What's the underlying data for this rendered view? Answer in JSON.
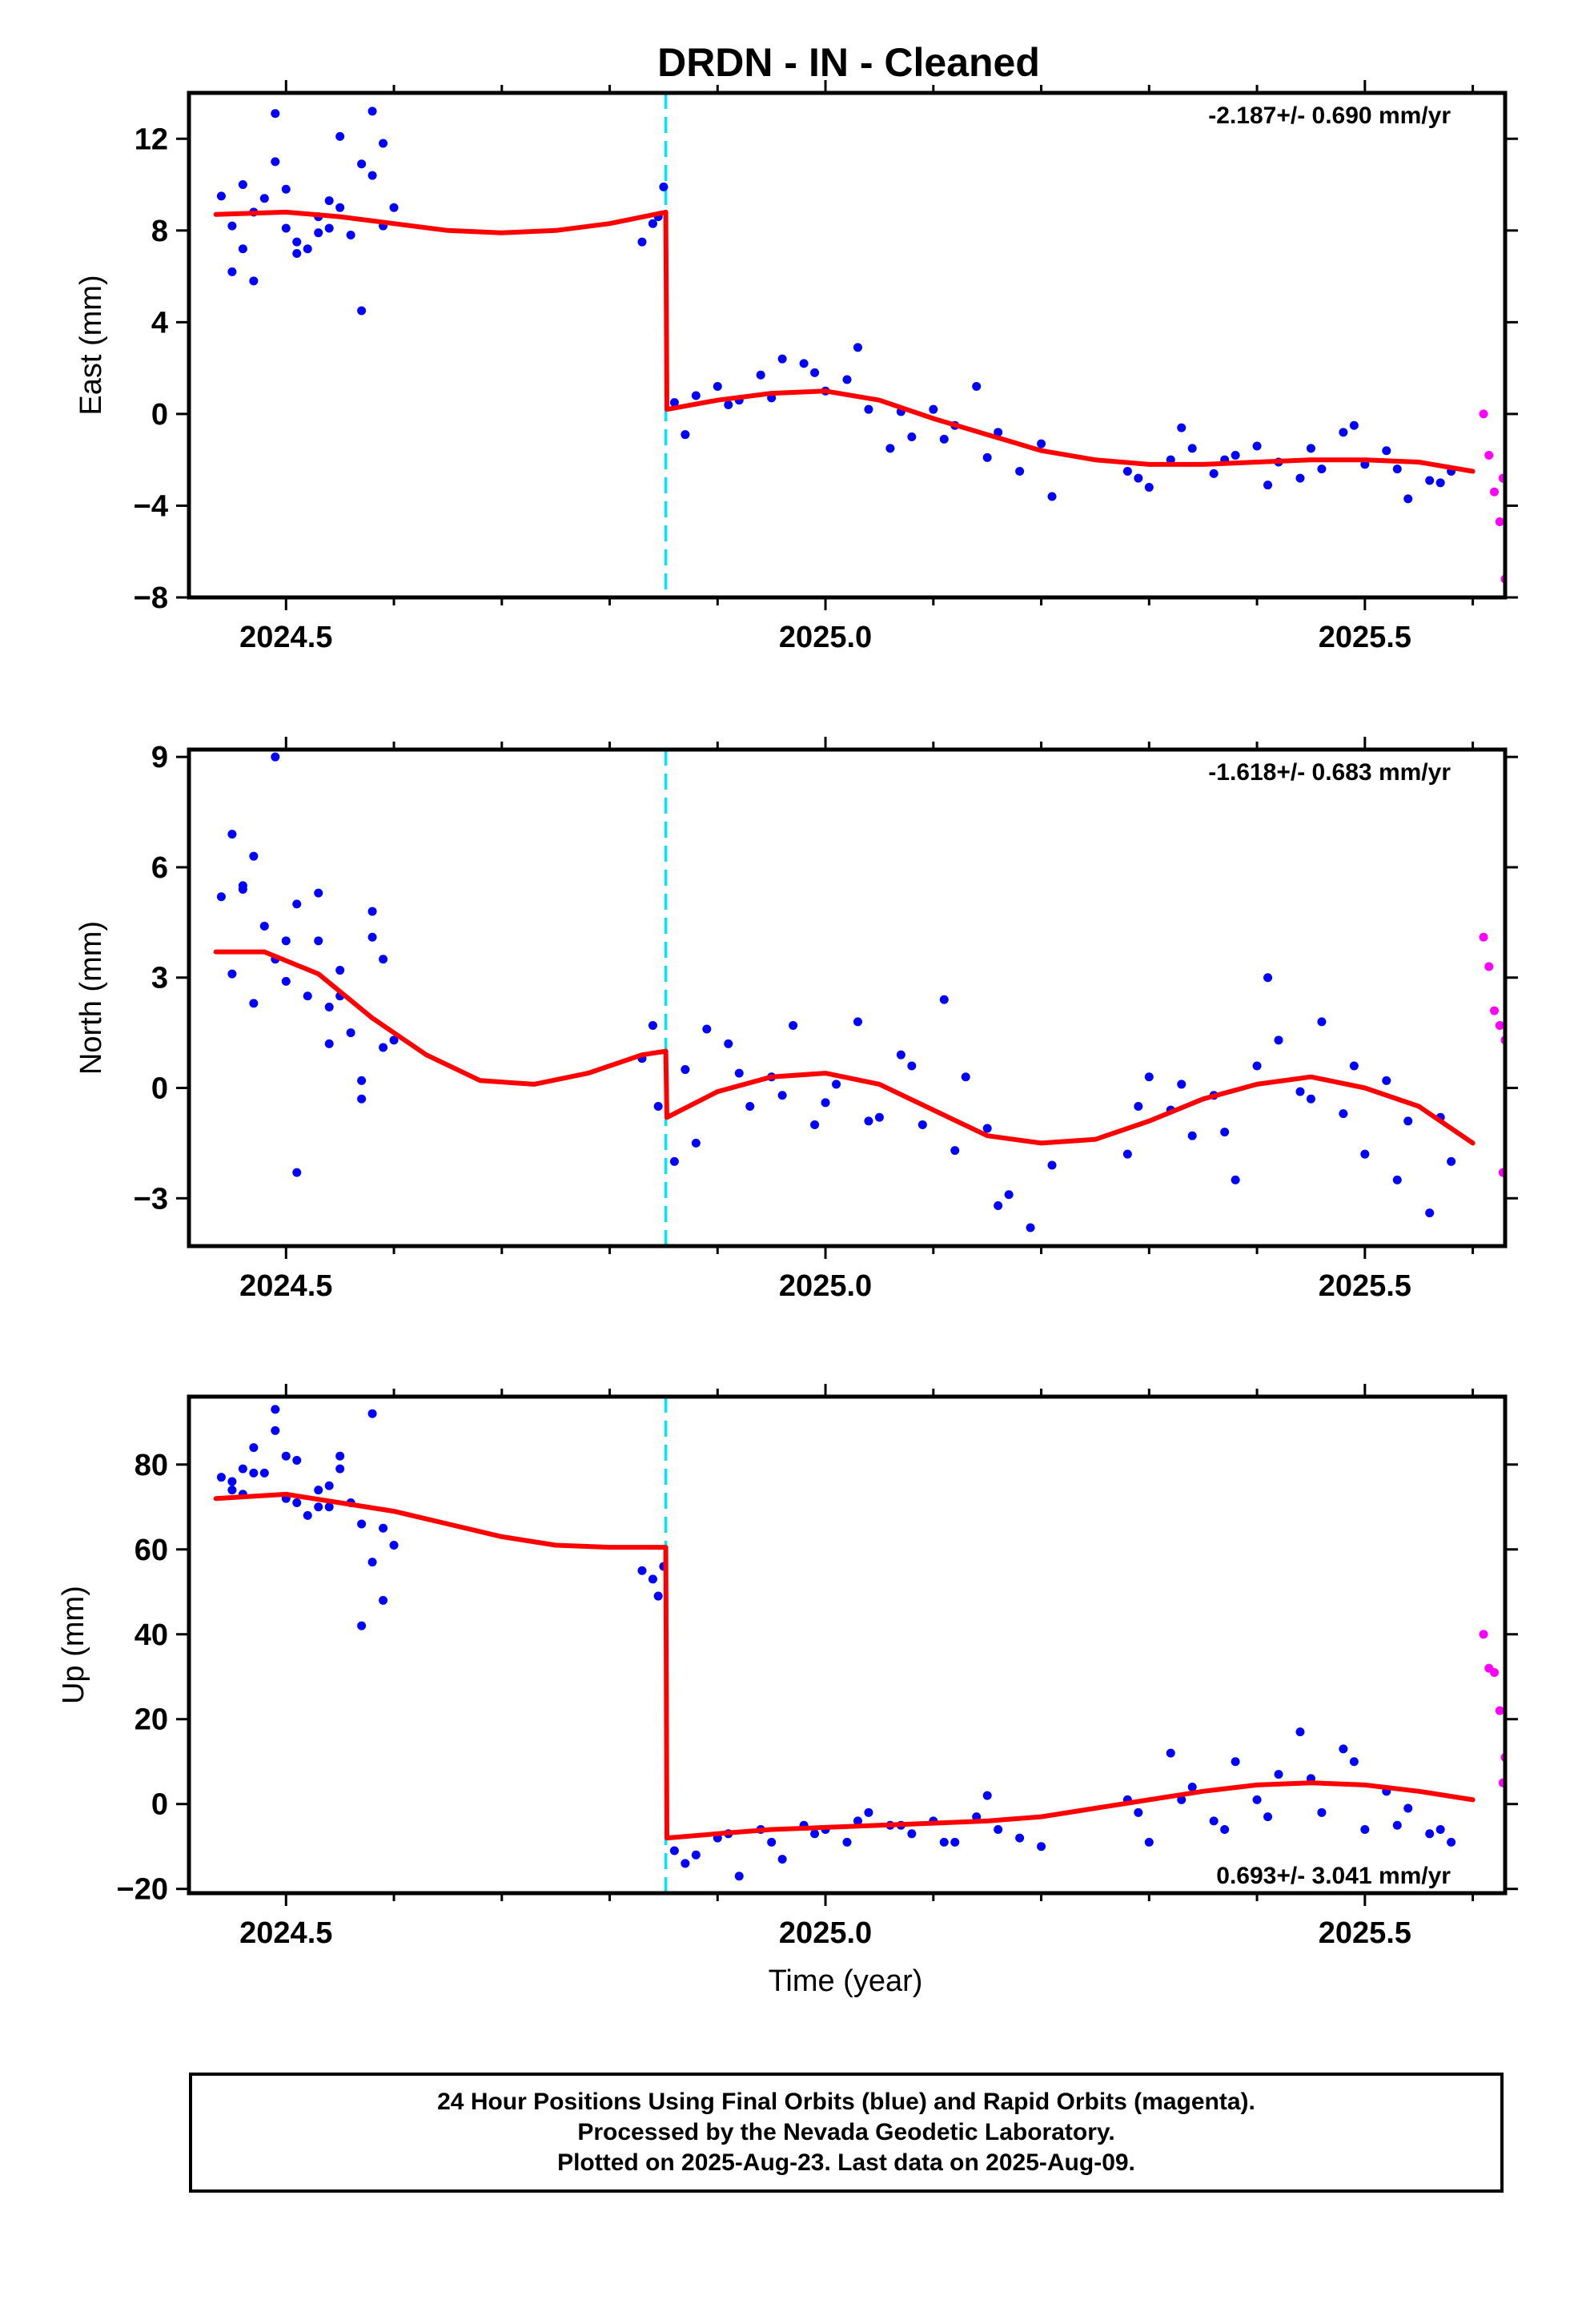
{
  "title": "DRDN  - IN - Cleaned",
  "colors": {
    "final_orbits": "#0000ff",
    "rapid_orbits": "#ff00ff",
    "model": "#ff0000",
    "event": "#00e5ff"
  },
  "caption": {
    "line1": "24 Hour Positions Using Final Orbits (blue) and Rapid Orbits (magenta).",
    "line2": "Processed by the Nevada Geodetic Laboratory.",
    "line3": "Plotted on 2025-Aug-23. Last data on 2025-Aug-09."
  },
  "chart_data": [
    {
      "type": "scatter",
      "panel": "east",
      "ylabel": "East (mm)",
      "xlabel": "",
      "xlim": [
        2024.41,
        2025.63
      ],
      "ylim": [
        -8,
        14
      ],
      "yticks": [
        -8,
        -4,
        0,
        4,
        8,
        12
      ],
      "ytick_labels": [
        "−8",
        "−4",
        "0",
        "4",
        "8",
        "12"
      ],
      "xticks": [
        2024.5,
        2025.0,
        2025.5
      ],
      "xtick_labels": [
        "2024.5",
        "2025.0",
        "2025.5"
      ],
      "event_x": 2024.852,
      "rate_label": "-2.187+/- 0.690 mm/yr",
      "rate_label_position": "top-right",
      "series": [
        {
          "role": "final",
          "x": [
            2024.44,
            2024.45,
            2024.46,
            2024.47,
            2024.48,
            2024.49,
            2024.5,
            2024.51,
            2024.52,
            2024.53,
            2024.54,
            2024.55,
            2024.56,
            2024.57,
            2024.58,
            2024.59,
            2024.6,
            2024.45,
            2024.47,
            2024.49,
            2024.51,
            2024.53,
            2024.55,
            2024.57,
            2024.59,
            2024.46,
            2024.5,
            2024.54,
            2024.58,
            2024.84,
            2024.85,
            2024.83,
            2024.845,
            2024.86,
            2024.88,
            2024.9,
            2024.92,
            2024.94,
            2024.96,
            2024.98,
            2025.0,
            2025.02,
            2025.04,
            2025.06,
            2025.08,
            2025.1,
            2025.12,
            2025.14,
            2025.16,
            2025.18,
            2025.2,
            2025.21,
            2025.28,
            2025.3,
            2025.32,
            2025.34,
            2025.36,
            2025.38,
            2025.4,
            2025.42,
            2025.44,
            2025.46,
            2025.48,
            2025.5,
            2025.52,
            2025.54,
            2025.56,
            2025.58,
            2024.87,
            2024.91,
            2024.95,
            2024.99,
            2025.03,
            2025.07,
            2025.11,
            2025.15,
            2025.29,
            2025.33,
            2025.37,
            2025.41,
            2025.45,
            2025.49,
            2025.53,
            2025.57
          ],
          "y": [
            9.5,
            8.2,
            10.0,
            8.8,
            9.4,
            13.1,
            8.1,
            7.5,
            7.2,
            8.6,
            9.3,
            9.0,
            7.8,
            10.9,
            13.2,
            11.8,
            9.0,
            6.2,
            5.8,
            11.0,
            7.0,
            7.9,
            12.1,
            4.5,
            8.2,
            7.2,
            9.8,
            8.1,
            10.4,
            8.3,
            9.9,
            7.5,
            8.6,
            0.5,
            0.8,
            1.2,
            0.6,
            1.7,
            2.4,
            2.2,
            1.0,
            1.5,
            0.2,
            -1.5,
            -1.0,
            0.2,
            -0.5,
            1.2,
            -0.8,
            -2.5,
            -1.3,
            -3.6,
            -2.5,
            -3.2,
            -2.0,
            -1.5,
            -2.6,
            -1.8,
            -1.4,
            -2.1,
            -2.8,
            -2.4,
            -0.8,
            -2.2,
            -1.6,
            -3.7,
            -2.9,
            -2.5,
            -0.9,
            0.4,
            0.7,
            1.8,
            2.9,
            0.1,
            -1.1,
            -1.9,
            -2.8,
            -0.6,
            -2.0,
            -3.1,
            -1.5,
            -0.5,
            -2.4,
            -3.0
          ]
        },
        {
          "role": "rapid",
          "x": [
            2025.61,
            2025.615,
            2025.62,
            2025.625,
            2025.63,
            2025.635,
            2025.628
          ],
          "y": [
            0.0,
            -1.8,
            -3.4,
            -4.7,
            -7.2,
            -7.8,
            -2.8
          ]
        },
        {
          "role": "model",
          "x": [
            2024.435,
            2024.5,
            2024.55,
            2024.6,
            2024.65,
            2024.7,
            2024.75,
            2024.8,
            2024.852,
            2024.853,
            2024.9,
            2024.95,
            2025.0,
            2025.05,
            2025.1,
            2025.15,
            2025.2,
            2025.25,
            2025.3,
            2025.35,
            2025.4,
            2025.45,
            2025.5,
            2025.55,
            2025.6
          ],
          "y": [
            8.7,
            8.8,
            8.6,
            8.3,
            8.0,
            7.9,
            8.0,
            8.3,
            8.8,
            0.2,
            0.6,
            0.9,
            1.0,
            0.6,
            -0.2,
            -0.9,
            -1.6,
            -2.0,
            -2.2,
            -2.2,
            -2.1,
            -2.0,
            -2.0,
            -2.1,
            -2.5
          ]
        }
      ]
    },
    {
      "type": "scatter",
      "panel": "north",
      "ylabel": "North (mm)",
      "xlabel": "",
      "xlim": [
        2024.41,
        2025.63
      ],
      "ylim": [
        -4.3,
        9.2
      ],
      "yticks": [
        -3,
        0,
        3,
        6,
        9
      ],
      "ytick_labels": [
        "−3",
        "0",
        "3",
        "6",
        "9"
      ],
      "xticks": [
        2024.5,
        2025.0,
        2025.5
      ],
      "xtick_labels": [
        "2024.5",
        "2025.0",
        "2025.5"
      ],
      "event_x": 2024.852,
      "rate_label": "-1.618+/- 0.683 mm/yr",
      "rate_label_position": "top-right",
      "series": [
        {
          "role": "final",
          "x": [
            2024.44,
            2024.45,
            2024.46,
            2024.47,
            2024.48,
            2024.49,
            2024.5,
            2024.51,
            2024.52,
            2024.53,
            2024.54,
            2024.55,
            2024.56,
            2024.57,
            2024.58,
            2024.59,
            2024.6,
            2024.45,
            2024.47,
            2024.49,
            2024.51,
            2024.53,
            2024.55,
            2024.57,
            2024.59,
            2024.46,
            2024.5,
            2024.54,
            2024.58,
            2024.83,
            2024.84,
            2024.845,
            2024.86,
            2024.87,
            2024.89,
            2024.91,
            2024.93,
            2024.95,
            2024.97,
            2024.99,
            2025.01,
            2025.03,
            2025.05,
            2025.07,
            2025.09,
            2025.11,
            2025.13,
            2025.15,
            2025.17,
            2025.19,
            2025.21,
            2025.28,
            2025.3,
            2025.32,
            2025.34,
            2025.36,
            2025.38,
            2025.4,
            2025.42,
            2025.44,
            2025.46,
            2025.48,
            2025.5,
            2025.52,
            2025.54,
            2025.56,
            2025.58,
            2024.88,
            2024.92,
            2024.96,
            2025.0,
            2025.04,
            2025.08,
            2025.12,
            2025.16,
            2025.29,
            2025.33,
            2025.37,
            2025.41,
            2025.45,
            2025.49,
            2025.53,
            2025.57
          ],
          "y": [
            5.2,
            6.9,
            5.4,
            6.3,
            4.4,
            9.0,
            4.0,
            5.0,
            2.5,
            5.3,
            2.2,
            3.2,
            1.5,
            -0.3,
            4.8,
            3.5,
            1.3,
            3.1,
            2.3,
            3.5,
            -2.3,
            4.0,
            2.5,
            0.2,
            1.1,
            5.5,
            2.9,
            1.2,
            4.1,
            0.8,
            1.7,
            -0.5,
            -2.0,
            0.5,
            1.6,
            1.2,
            -0.5,
            0.3,
            1.7,
            -1.0,
            0.1,
            1.8,
            -0.8,
            0.9,
            -1.0,
            2.4,
            0.3,
            -1.1,
            -2.9,
            -3.8,
            -2.1,
            -1.8,
            0.3,
            -0.6,
            -1.3,
            -0.2,
            -2.5,
            0.6,
            1.3,
            -0.1,
            1.8,
            -0.7,
            -1.8,
            0.2,
            -0.9,
            -3.4,
            -2.0,
            -1.5,
            0.4,
            -0.2,
            -0.4,
            -0.9,
            0.6,
            -1.7,
            -3.2,
            -0.5,
            0.1,
            -1.2,
            3.0,
            -0.3,
            0.6,
            -2.5,
            -0.8
          ]
        },
        {
          "role": "rapid",
          "x": [
            2025.61,
            2025.615,
            2025.62,
            2025.625,
            2025.63,
            2025.635,
            2025.628
          ],
          "y": [
            4.1,
            3.3,
            2.1,
            1.7,
            1.3,
            -0.1,
            -2.3
          ]
        },
        {
          "role": "model",
          "x": [
            2024.435,
            2024.48,
            2024.53,
            2024.58,
            2024.63,
            2024.68,
            2024.73,
            2024.78,
            2024.83,
            2024.852,
            2024.853,
            2024.9,
            2024.95,
            2025.0,
            2025.05,
            2025.1,
            2025.15,
            2025.2,
            2025.25,
            2025.3,
            2025.35,
            2025.4,
            2025.45,
            2025.5,
            2025.55,
            2025.6
          ],
          "y": [
            3.7,
            3.7,
            3.1,
            1.9,
            0.9,
            0.2,
            0.1,
            0.4,
            0.9,
            1.0,
            -0.8,
            -0.1,
            0.3,
            0.4,
            0.1,
            -0.6,
            -1.3,
            -1.5,
            -1.4,
            -0.9,
            -0.3,
            0.1,
            0.3,
            0.0,
            -0.5,
            -1.5
          ]
        }
      ]
    },
    {
      "type": "scatter",
      "panel": "up",
      "ylabel": "Up (mm)",
      "xlabel": "Time (year)",
      "xlim": [
        2024.41,
        2025.63
      ],
      "ylim": [
        -21,
        96
      ],
      "yticks": [
        -20,
        0,
        20,
        40,
        60,
        80
      ],
      "ytick_labels": [
        "−20",
        "0",
        "20",
        "40",
        "60",
        "80"
      ],
      "xticks": [
        2024.5,
        2025.0,
        2025.5
      ],
      "xtick_labels": [
        "2024.5",
        "2025.0",
        "2025.5"
      ],
      "event_x": 2024.852,
      "rate_label": "0.693+/- 3.041 mm/yr",
      "rate_label_position": "bottom-right",
      "series": [
        {
          "role": "final",
          "x": [
            2024.44,
            2024.45,
            2024.46,
            2024.47,
            2024.48,
            2024.49,
            2024.5,
            2024.51,
            2024.52,
            2024.53,
            2024.54,
            2024.55,
            2024.56,
            2024.57,
            2024.58,
            2024.59,
            2024.6,
            2024.45,
            2024.47,
            2024.49,
            2024.51,
            2024.53,
            2024.55,
            2024.57,
            2024.59,
            2024.46,
            2024.5,
            2024.54,
            2024.58,
            2024.83,
            2024.84,
            2024.845,
            2024.85,
            2024.86,
            2024.88,
            2024.9,
            2024.92,
            2024.94,
            2024.96,
            2024.98,
            2025.0,
            2025.02,
            2025.04,
            2025.06,
            2025.08,
            2025.1,
            2025.12,
            2025.14,
            2025.16,
            2025.18,
            2025.2,
            2025.28,
            2025.3,
            2025.32,
            2025.34,
            2025.36,
            2025.38,
            2025.4,
            2025.42,
            2025.44,
            2025.46,
            2025.48,
            2025.5,
            2025.52,
            2025.54,
            2025.56,
            2025.58,
            2024.87,
            2024.91,
            2024.95,
            2024.99,
            2025.03,
            2025.07,
            2025.11,
            2025.15,
            2025.29,
            2025.33,
            2025.37,
            2025.41,
            2025.45,
            2025.49,
            2025.53,
            2025.57
          ],
          "y": [
            77,
            74,
            79,
            84,
            78,
            93,
            72,
            81,
            68,
            70,
            75,
            82,
            71,
            42,
            92,
            65,
            61,
            76,
            78,
            88,
            71,
            74,
            79,
            66,
            48,
            73,
            82,
            70,
            57,
            55,
            53,
            49,
            56,
            -11,
            -12,
            -8,
            -17,
            -6,
            -13,
            -5,
            -6,
            -9,
            -2,
            -5,
            -7,
            -4,
            -9,
            -3,
            -6,
            -8,
            -10,
            1,
            -9,
            12,
            4,
            -4,
            10,
            1,
            7,
            17,
            -2,
            13,
            -6,
            3,
            -1,
            -7,
            -9,
            -14,
            -7,
            -9,
            -7,
            -4,
            -5,
            -9,
            2,
            -2,
            1,
            -6,
            -3,
            6,
            10,
            -5,
            -6
          ]
        },
        {
          "role": "rapid",
          "x": [
            2025.61,
            2025.615,
            2025.62,
            2025.625,
            2025.63,
            2025.635,
            2025.628
          ],
          "y": [
            40,
            32,
            31,
            22,
            11,
            11,
            5
          ]
        },
        {
          "role": "model",
          "x": [
            2024.435,
            2024.5,
            2024.55,
            2024.6,
            2024.65,
            2024.7,
            2024.75,
            2024.8,
            2024.852,
            2024.853,
            2024.9,
            2024.95,
            2025.0,
            2025.05,
            2025.1,
            2025.15,
            2025.2,
            2025.25,
            2025.3,
            2025.35,
            2025.4,
            2025.45,
            2025.5,
            2025.55,
            2025.6
          ],
          "y": [
            72,
            73,
            71,
            69,
            66,
            63,
            61,
            60.5,
            60.5,
            -8,
            -7,
            -6,
            -5.5,
            -5,
            -4.5,
            -4,
            -3,
            -1,
            1,
            3,
            4.5,
            5,
            4.5,
            3,
            1
          ]
        }
      ]
    }
  ]
}
